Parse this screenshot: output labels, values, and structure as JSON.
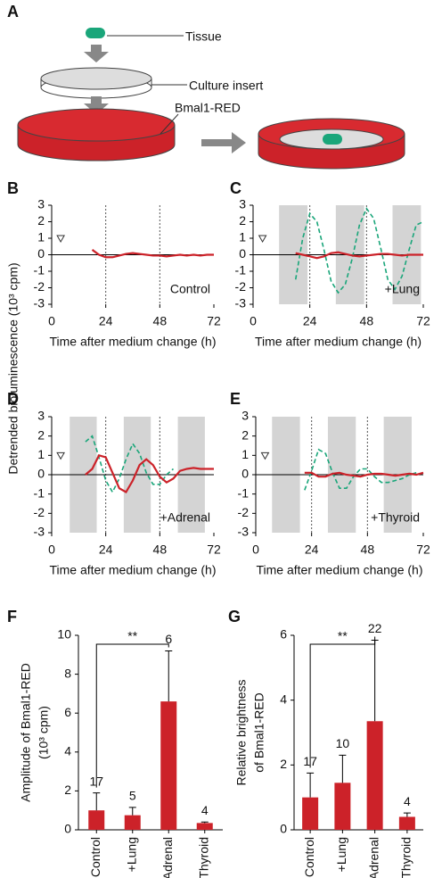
{
  "diagram": {
    "panel": "A",
    "tissue_label": "Tissue",
    "insert_label": "Culture insert",
    "reporter_label": "Bmal1-RED"
  },
  "shared_ylabel": "Detrended bioluminescence (10³ cpm)",
  "chart_data": [
    {
      "type": "line",
      "panel": "B",
      "x": [
        15,
        18,
        21,
        24,
        27,
        30,
        33,
        36,
        39,
        42,
        45,
        48,
        51,
        54,
        57,
        60,
        63,
        66,
        69,
        72
      ],
      "series": [
        {
          "color": "#cc2229",
          "dashed": false,
          "values": [
            null,
            0.3,
            0,
            -0.15,
            -0.15,
            -0.05,
            0.05,
            0.1,
            0.05,
            0,
            -0.05,
            -0.05,
            -0.1,
            -0.05,
            0,
            -0.05,
            0,
            -0.05,
            0,
            0
          ]
        }
      ],
      "xlim": [
        0,
        72
      ],
      "ylim": [
        -3,
        3
      ],
      "xticks": [
        0,
        24,
        48,
        72
      ],
      "yticks": [
        -3,
        -2,
        -1,
        0,
        1,
        2,
        3
      ],
      "xlabel": "Time after medium change (h)",
      "annotation": "Control",
      "vlines": [
        24,
        48
      ],
      "hlines": [
        0
      ],
      "shaded": []
    },
    {
      "type": "line",
      "panel": "C",
      "x": [
        15,
        18,
        21,
        24,
        27,
        30,
        33,
        36,
        39,
        42,
        45,
        48,
        51,
        54,
        57,
        60,
        63,
        66,
        69,
        72
      ],
      "series": [
        {
          "color": "#1aa67a",
          "dashed": true,
          "values": [
            null,
            -1.5,
            1.0,
            2.5,
            2.0,
            0.3,
            -1.6,
            -2.3,
            -1.8,
            -0.2,
            1.8,
            2.8,
            2.2,
            0.4,
            -1.5,
            -2.1,
            -1.3,
            0.3,
            1.8,
            2.0
          ]
        },
        {
          "color": "#cc2229",
          "dashed": false,
          "values": [
            null,
            0.1,
            0,
            -0.1,
            -0.2,
            -0.1,
            0.1,
            0.15,
            0.05,
            -0.05,
            -0.1,
            -0.05,
            0,
            0.05,
            0.05,
            0,
            -0.05,
            0,
            0,
            0
          ]
        }
      ],
      "xlim": [
        0,
        72
      ],
      "ylim": [
        -3,
        3
      ],
      "xticks": [
        0,
        24,
        48,
        72
      ],
      "yticks": [
        -3,
        -2,
        -1,
        0,
        1,
        2,
        3
      ],
      "xlabel": "Time after medium change (h)",
      "annotation": "+Lung",
      "vlines": [
        24,
        48
      ],
      "hlines": [
        0
      ],
      "shaded": [
        [
          11,
          23
        ],
        [
          35,
          47
        ],
        [
          59,
          71
        ]
      ]
    },
    {
      "type": "line",
      "panel": "D",
      "x": [
        15,
        18,
        21,
        24,
        27,
        30,
        33,
        36,
        39,
        42,
        45,
        48,
        51,
        54,
        57,
        60,
        63,
        66,
        69,
        72
      ],
      "series": [
        {
          "color": "#1aa67a",
          "dashed": true,
          "values": [
            1.7,
            2.0,
            0.9,
            -0.3,
            -0.9,
            -0.2,
            0.8,
            1.6,
            1.1,
            0.1,
            -0.5,
            -0.5,
            0,
            0.3,
            null,
            null,
            null,
            null,
            null,
            null
          ]
        },
        {
          "color": "#cc2229",
          "dashed": false,
          "values": [
            0,
            0.3,
            1.0,
            0.9,
            0.1,
            -0.7,
            -0.9,
            -0.3,
            0.5,
            0.8,
            0.5,
            -0.1,
            -0.4,
            -0.2,
            0.2,
            0.3,
            0.35,
            0.3,
            0.3,
            0.3
          ]
        }
      ],
      "xlim": [
        0,
        72
      ],
      "ylim": [
        -3,
        3
      ],
      "xticks": [
        0,
        24,
        48,
        72
      ],
      "yticks": [
        -3,
        -2,
        -1,
        0,
        1,
        2,
        3
      ],
      "xlabel": "Time after medium change (h)",
      "annotation": "+Adrenal",
      "vlines": [
        24,
        48
      ],
      "hlines": [
        0
      ],
      "shaded": [
        [
          8,
          20
        ],
        [
          32,
          44
        ],
        [
          56,
          68
        ]
      ]
    },
    {
      "type": "line",
      "panel": "E",
      "x": [
        15,
        18,
        21,
        24,
        27,
        30,
        33,
        36,
        39,
        42,
        45,
        48,
        51,
        54,
        57,
        60,
        63,
        66,
        69,
        72
      ],
      "series": [
        {
          "color": "#1aa67a",
          "dashed": true,
          "values": [
            null,
            null,
            -0.8,
            0.2,
            1.3,
            1.1,
            0.1,
            -0.7,
            -0.7,
            -0.1,
            0.3,
            0.3,
            -0.1,
            -0.4,
            -0.4,
            -0.3,
            -0.2,
            0,
            0.1,
            null
          ]
        },
        {
          "color": "#cc2229",
          "dashed": false,
          "values": [
            null,
            null,
            0.1,
            0.1,
            -0.1,
            -0.1,
            0.05,
            0.1,
            0,
            -0.05,
            -0.1,
            0,
            0.05,
            0.05,
            0,
            -0.05,
            0,
            0.05,
            0,
            0.1
          ]
        }
      ],
      "xlim": [
        0,
        72
      ],
      "ylim": [
        -3,
        3
      ],
      "xticks": [
        0,
        24,
        48,
        72
      ],
      "yticks": [
        -3,
        -2,
        -1,
        0,
        1,
        2,
        3
      ],
      "xlabel": "Time after medium change (h)",
      "annotation": "+Thyroid",
      "vlines": [
        24,
        48
      ],
      "hlines": [
        0
      ],
      "shaded": [
        [
          7,
          19
        ],
        [
          31,
          43
        ],
        [
          55,
          67
        ]
      ]
    },
    {
      "type": "bar",
      "panel": "F",
      "categories": [
        "Control",
        "+Lung",
        "+Adrenal",
        "+Thyroid"
      ],
      "values": [
        1.0,
        0.75,
        6.6,
        0.35
      ],
      "errors": [
        0.9,
        0.4,
        2.6,
        0.05
      ],
      "n": [
        17,
        5,
        6,
        4
      ],
      "color": "#cc2229",
      "ylabel": [
        "Amplitude of Bmal1-RED",
        "(10³ cpm)"
      ],
      "ylim": [
        0,
        10
      ],
      "yticks": [
        0,
        2,
        4,
        6,
        8,
        10
      ],
      "significance": {
        "label": "**",
        "from": 0,
        "to": 2
      }
    },
    {
      "type": "bar",
      "panel": "G",
      "categories": [
        "Control",
        "+Lung",
        "+Adrenal",
        "+Thyroid"
      ],
      "values": [
        1.0,
        1.45,
        3.35,
        0.4
      ],
      "errors": [
        0.75,
        0.85,
        2.5,
        0.12
      ],
      "n": [
        17,
        10,
        22,
        4
      ],
      "color": "#cc2229",
      "ylabel": [
        "Relative brightness",
        "of Bmal1-RED"
      ],
      "ylim": [
        0,
        6
      ],
      "yticks": [
        0,
        2,
        4,
        6
      ],
      "significance": {
        "label": "**",
        "from": 0,
        "to": 2
      }
    }
  ]
}
